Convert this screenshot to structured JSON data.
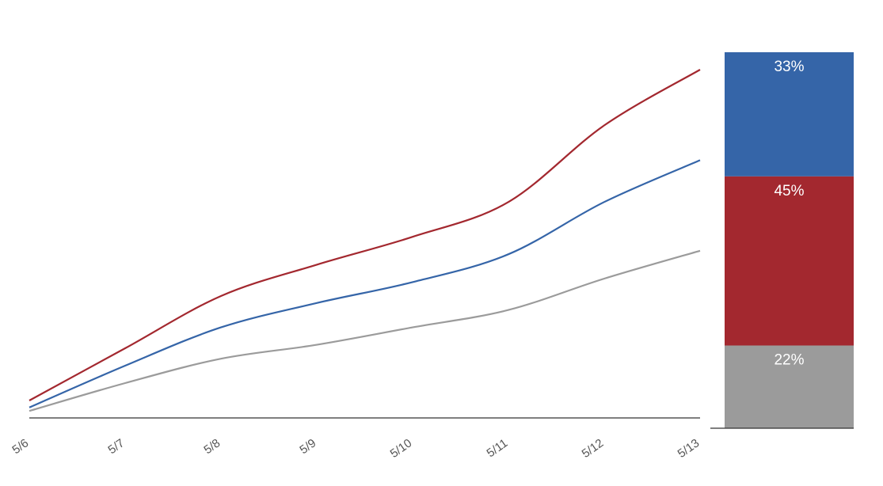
{
  "chart_data": [
    {
      "type": "line",
      "x": [
        "5/6",
        "5/7",
        "5/8",
        "5/9",
        "5/10",
        "5/11",
        "5/12",
        "5/13"
      ],
      "ylim": [
        0,
        100
      ],
      "series": [
        {
          "color": "#a3282f",
          "values": [
            5,
            20,
            35,
            44,
            52,
            62,
            84,
            100
          ]
        },
        {
          "color": "#3565a8",
          "values": [
            3,
            15,
            26,
            33,
            39,
            47,
            62,
            74
          ]
        },
        {
          "color": "#9b9b9b",
          "values": [
            2,
            10,
            17,
            21,
            26,
            31,
            40,
            48
          ]
        }
      ]
    },
    {
      "type": "stacked_bar",
      "ylim": [
        0,
        100
      ],
      "series": [
        {
          "color": "#9b9b9b",
          "values": [
            22
          ],
          "value_labels": [
            "22%"
          ]
        },
        {
          "color": "#a3282f",
          "values": [
            45
          ],
          "value_labels": [
            "45%"
          ]
        },
        {
          "color": "#3565a8",
          "values": [
            33
          ],
          "value_labels": [
            "33%"
          ]
        }
      ]
    }
  ]
}
